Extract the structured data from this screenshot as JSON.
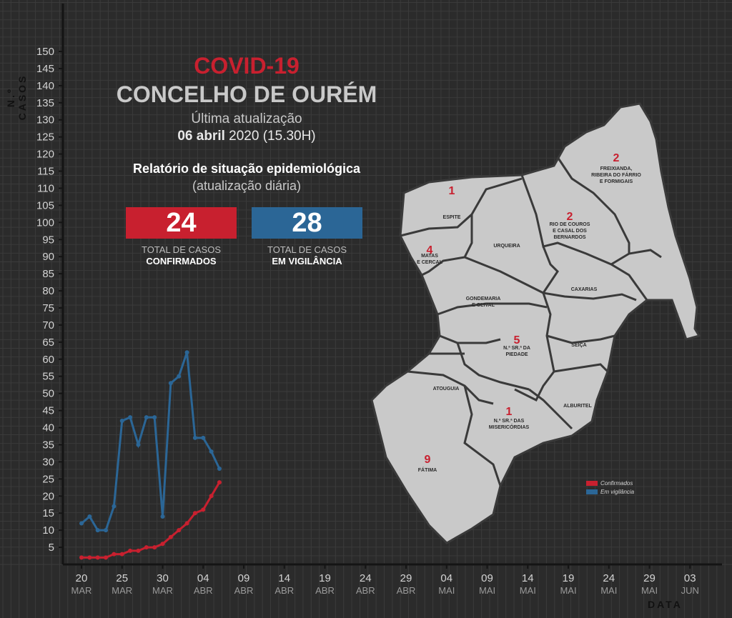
{
  "header": {
    "title_red": "COVID-19",
    "title_main": "CONCELHO DE OURÉM",
    "update_label": "Última atualização",
    "update_date_bold": "06 abril",
    "update_date_rest": " 2020 (15.30H)",
    "report_title": "Relatório de situação epidemiológica",
    "report_subtitle": "(atualização diária)"
  },
  "stats": {
    "confirmed": {
      "value": "24",
      "caption1": "TOTAL DE CASOS",
      "caption2": "CONFIRMADOS",
      "color": "#c8202f"
    },
    "surveillance": {
      "value": "28",
      "caption1": "TOTAL DE CASOS",
      "caption2": "EM VIGILÂNCIA",
      "color": "#2b6696"
    }
  },
  "legend": {
    "confirmed": "Confirmados",
    "surveillance": "Em vigilância"
  },
  "map": {
    "parishes": [
      {
        "name": "FREIXIANDA, RIBEIRA DO FÁRRIO E FORMIGAIS",
        "lines": [
          "FREIXIANDA,",
          "RIBEIRA DO FÁRRIO",
          "E FORMIGAIS"
        ],
        "cases": "2"
      },
      {
        "name": "ESPITE",
        "lines": [
          "ESPITE"
        ],
        "cases": "1"
      },
      {
        "name": "RIO DE COUROS E CASAL DOS BERNARDOS",
        "lines": [
          "RIO DE COUROS",
          "E CASAL DOS",
          "BERNARDOS"
        ],
        "cases": "2"
      },
      {
        "name": "MATAS E CERCAL",
        "lines": [
          "MATAS",
          "E CERCAL"
        ],
        "cases": "4"
      },
      {
        "name": "URQUEIRA",
        "lines": [
          "URQUEIRA"
        ],
        "cases": ""
      },
      {
        "name": "CAXARIAS",
        "lines": [
          "CAXARIAS"
        ],
        "cases": ""
      },
      {
        "name": "GONDEMARIA E OLIVAL",
        "lines": [
          "GONDEMARIA",
          "E OLIVAL"
        ],
        "cases": ""
      },
      {
        "name": "N.ª SR.ª DA PIEDADE",
        "lines": [
          "N.ª SR.ª DA",
          "PIEDADE"
        ],
        "cases": "5"
      },
      {
        "name": "SEIÇA",
        "lines": [
          "SEIÇA"
        ],
        "cases": ""
      },
      {
        "name": "ATOUGUIA",
        "lines": [
          "ATOUGUIA"
        ],
        "cases": ""
      },
      {
        "name": "ALBURITEL",
        "lines": [
          "ALBURITEL"
        ],
        "cases": ""
      },
      {
        "name": "N.ª SR.ª DAS MISERICÓRDIAS",
        "lines": [
          "N.ª SR.ª DAS",
          "MISERICÓRDIAS"
        ],
        "cases": "1"
      },
      {
        "name": "FÁTIMA",
        "lines": [
          "FÁTIMA"
        ],
        "cases": "9"
      }
    ]
  },
  "chart_data": {
    "type": "line",
    "ylabel": "N.º CASOS",
    "xlabel": "DATA",
    "ylim": [
      0,
      150
    ],
    "yticks": [
      5,
      10,
      15,
      20,
      25,
      30,
      35,
      40,
      45,
      50,
      55,
      60,
      65,
      70,
      75,
      80,
      85,
      90,
      95,
      100,
      105,
      110,
      115,
      120,
      125,
      130,
      135,
      140,
      145,
      150
    ],
    "xlim": [
      "2020-03-19",
      "2020-06-04"
    ],
    "xticks": [
      {
        "day": "20",
        "month": "MAR",
        "date": "2020-03-20"
      },
      {
        "day": "25",
        "month": "MAR",
        "date": "2020-03-25"
      },
      {
        "day": "30",
        "month": "MAR",
        "date": "2020-03-30"
      },
      {
        "day": "04",
        "month": "ABR",
        "date": "2020-04-04"
      },
      {
        "day": "09",
        "month": "ABR",
        "date": "2020-04-09"
      },
      {
        "day": "14",
        "month": "ABR",
        "date": "2020-04-14"
      },
      {
        "day": "19",
        "month": "ABR",
        "date": "2020-04-19"
      },
      {
        "day": "24",
        "month": "ABR",
        "date": "2020-04-24"
      },
      {
        "day": "29",
        "month": "ABR",
        "date": "2020-04-29"
      },
      {
        "day": "04",
        "month": "MAI",
        "date": "2020-05-04"
      },
      {
        "day": "09",
        "month": "MAI",
        "date": "2020-05-09"
      },
      {
        "day": "14",
        "month": "MAI",
        "date": "2020-05-14"
      },
      {
        "day": "19",
        "month": "MAI",
        "date": "2020-05-19"
      },
      {
        "day": "24",
        "month": "MAI",
        "date": "2020-05-24"
      },
      {
        "day": "29",
        "month": "MAI",
        "date": "2020-05-29"
      },
      {
        "day": "03",
        "month": "JUN",
        "date": "2020-06-03"
      }
    ],
    "x": [
      "2020-03-20",
      "2020-03-21",
      "2020-03-22",
      "2020-03-23",
      "2020-03-24",
      "2020-03-25",
      "2020-03-26",
      "2020-03-27",
      "2020-03-28",
      "2020-03-29",
      "2020-03-30",
      "2020-03-31",
      "2020-04-01",
      "2020-04-02",
      "2020-04-03",
      "2020-04-04",
      "2020-04-05",
      "2020-04-06"
    ],
    "series": [
      {
        "name": "Confirmados",
        "color": "#c8202f",
        "values": [
          2,
          2,
          2,
          2,
          3,
          3,
          4,
          4,
          5,
          5,
          6,
          8,
          10,
          12,
          15,
          16,
          20,
          24
        ]
      },
      {
        "name": "Em vigilância",
        "color": "#2b6696",
        "values": [
          12,
          14,
          10,
          10,
          17,
          42,
          43,
          35,
          43,
          43,
          14,
          53,
          55,
          62,
          37,
          37,
          33,
          28
        ]
      }
    ],
    "grid": true,
    "legend_position": "bottom-right"
  }
}
